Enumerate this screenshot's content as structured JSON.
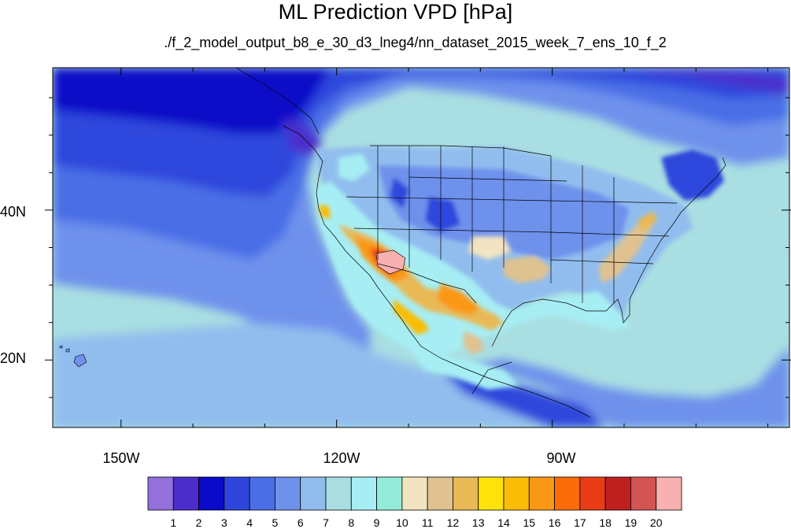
{
  "title": "ML Prediction VPD [hPa]",
  "subtitle": "./f_2_model_output_b8_e_30_d3_lneg4/nn_dataset_2015_week_7_ens_10_f_2",
  "map": {
    "lon_labels": [
      "150W",
      "120W",
      "90W"
    ],
    "lat_labels": [
      "40N",
      "20N"
    ],
    "lon_ticks": [
      -150,
      -120,
      -90
    ],
    "lat_ticks": [
      40,
      20
    ],
    "lon_range": [
      -159.5,
      -57
    ],
    "lat_range": [
      11,
      59
    ],
    "minor_lon_step": 10,
    "minor_lat_step": 5
  },
  "colorbar": {
    "labels": [
      "1",
      "2",
      "3",
      "4",
      "5",
      "6",
      "7",
      "8",
      "9",
      "10",
      "11",
      "12",
      "13",
      "14",
      "15",
      "16",
      "17",
      "18",
      "19",
      "20"
    ],
    "colors": [
      "#9370db",
      "#4b2dcc",
      "#0a0ac8",
      "#2e46dc",
      "#4a6ee6",
      "#6e91ec",
      "#91bdee",
      "#a9dfe2",
      "#a6eef4",
      "#94ecd8",
      "#f2e4c2",
      "#dfc290",
      "#e9b955",
      "#fde30a",
      "#fbbc06",
      "#fa9816",
      "#fb6c0a",
      "#e83c16",
      "#be2020",
      "#d45454",
      "#f8b0b0"
    ]
  }
}
